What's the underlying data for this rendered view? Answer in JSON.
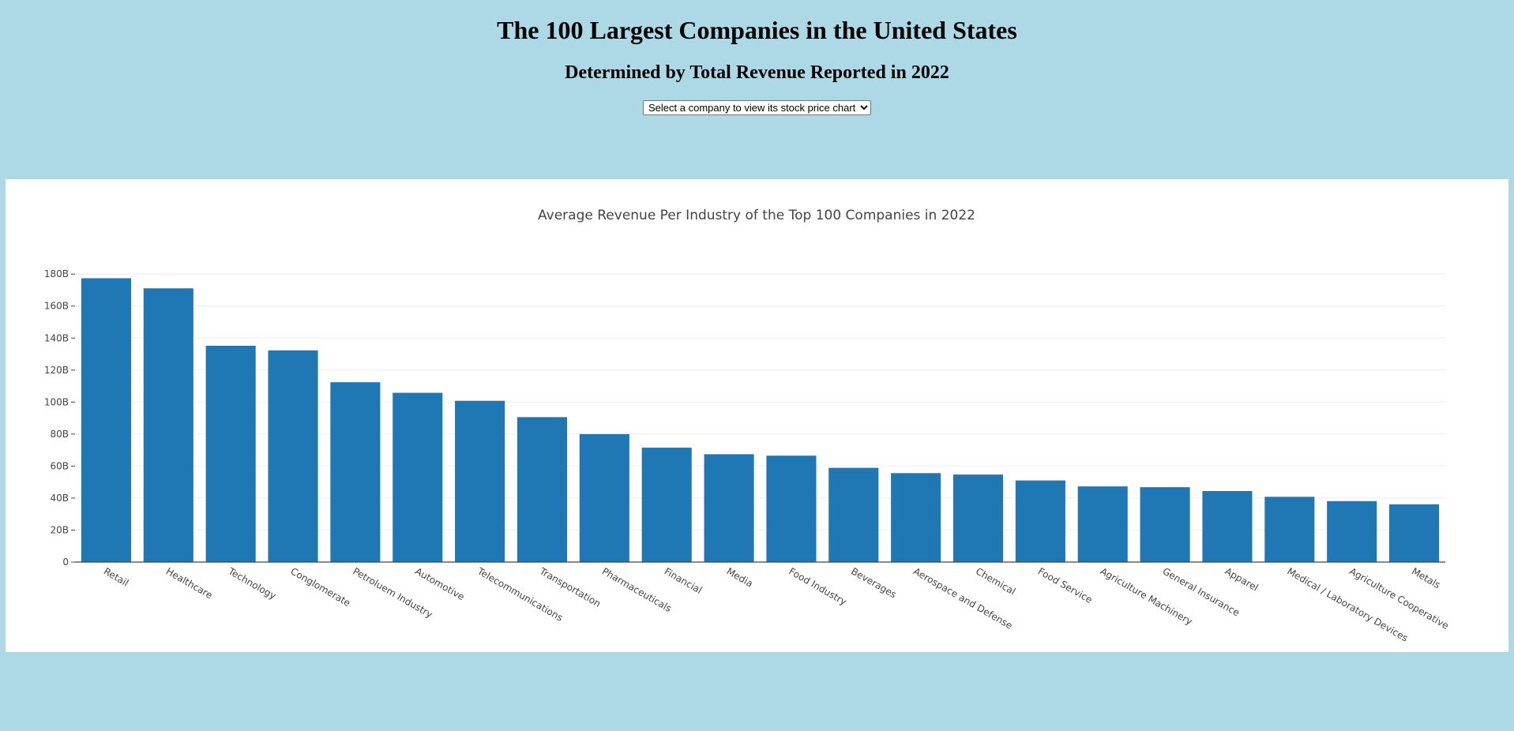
{
  "header": {
    "title": "The 100 Largest Companies in the United States",
    "subtitle": "Determined by Total Revenue Reported in 2022",
    "company_select": {
      "selected": "Select a company to view its stock price chart"
    }
  },
  "chart_data": {
    "type": "bar",
    "title": "Average Revenue Per Industry of the Top 100 Companies in 2022",
    "xlabel": "",
    "ylabel": "",
    "ylim": [
      0,
      187
    ],
    "yticks": [
      0,
      20,
      40,
      60,
      80,
      100,
      120,
      140,
      160,
      180
    ],
    "ytick_labels": [
      "0",
      "20B",
      "40B",
      "60B",
      "80B",
      "100B",
      "120B",
      "140B",
      "160B",
      "180B"
    ],
    "unit": "B",
    "grid": true,
    "bar_color": "#1f77b4",
    "categories": [
      "Retail",
      "Healthcare",
      "Technology",
      "Conglomerate",
      "Petroluem Industry",
      "Automotive",
      "Telecommunications",
      "Transportation",
      "Pharmaceuticals",
      "Financial",
      "Media",
      "Food Industry",
      "Beverages",
      "Aerospace and Defense",
      "Chemical",
      "Food Service",
      "Agriculture Machinery",
      "General Insurance",
      "Apparel",
      "Medical / Laboratory Devices",
      "Agriculture Cooperative",
      "Metals"
    ],
    "values": [
      177.4,
      171.1,
      135.2,
      132.3,
      112.4,
      105.8,
      100.8,
      90.6,
      80.0,
      71.5,
      67.4,
      66.5,
      58.9,
      55.6,
      54.7,
      51.0,
      47.3,
      46.8,
      44.4,
      40.8,
      38.1,
      36.1
    ]
  }
}
